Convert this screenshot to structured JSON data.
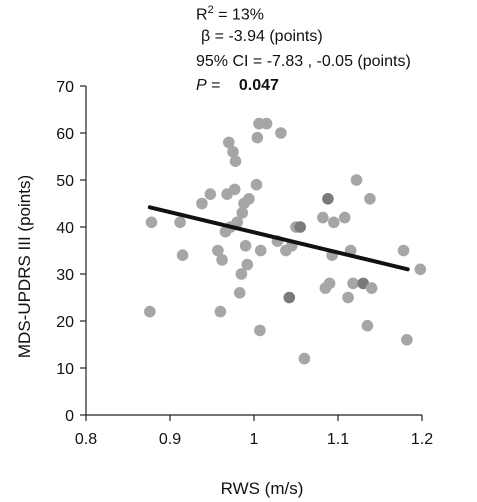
{
  "stats": {
    "r2_prefix": "R",
    "r2_sup": "2",
    "r2_suffix": " = 13%",
    "beta": "β = -3.94 (points)",
    "ci": "95% CI = -7.83 , -0.05 (points)",
    "p_label": "P",
    "p_eq": " = ",
    "p_value": "0.047"
  },
  "chart_data": {
    "type": "scatter",
    "xlabel": "RWS (m/s)",
    "ylabel": "MDS-UPDRS III (points)",
    "xlim": [
      0.8,
      1.2
    ],
    "ylim": [
      0,
      70
    ],
    "x_ticks": [
      "0.8",
      "0.9",
      "1",
      "1.1",
      "1.2"
    ],
    "y_ticks": [
      "0",
      "10",
      "20",
      "30",
      "40",
      "50",
      "60",
      "70"
    ],
    "grid": false,
    "point_color": "#a6a6a6",
    "dark_point_color": "#7a7a7a",
    "line_color": "#111111",
    "regression_line": {
      "x": [
        0.876,
        1.183
      ],
      "y": [
        44.2,
        31.0
      ]
    },
    "points": [
      {
        "x": 0.876,
        "y": 22
      },
      {
        "x": 0.878,
        "y": 41
      },
      {
        "x": 0.912,
        "y": 41
      },
      {
        "x": 0.915,
        "y": 34
      },
      {
        "x": 0.938,
        "y": 45
      },
      {
        "x": 0.948,
        "y": 47
      },
      {
        "x": 0.957,
        "y": 35
      },
      {
        "x": 0.96,
        "y": 22
      },
      {
        "x": 0.962,
        "y": 33
      },
      {
        "x": 0.966,
        "y": 39
      },
      {
        "x": 0.968,
        "y": 47
      },
      {
        "x": 0.97,
        "y": 58
      },
      {
        "x": 0.972,
        "y": 40
      },
      {
        "x": 0.975,
        "y": 56
      },
      {
        "x": 0.977,
        "y": 48
      },
      {
        "x": 0.978,
        "y": 54
      },
      {
        "x": 0.98,
        "y": 41
      },
      {
        "x": 0.983,
        "y": 26
      },
      {
        "x": 0.985,
        "y": 30
      },
      {
        "x": 0.986,
        "y": 43
      },
      {
        "x": 0.988,
        "y": 45
      },
      {
        "x": 0.99,
        "y": 36
      },
      {
        "x": 0.992,
        "y": 32
      },
      {
        "x": 0.994,
        "y": 46
      },
      {
        "x": 1.003,
        "y": 49
      },
      {
        "x": 1.004,
        "y": 59
      },
      {
        "x": 1.006,
        "y": 62
      },
      {
        "x": 1.007,
        "y": 18
      },
      {
        "x": 1.008,
        "y": 35
      },
      {
        "x": 1.015,
        "y": 62
      },
      {
        "x": 1.028,
        "y": 37
      },
      {
        "x": 1.032,
        "y": 60
      },
      {
        "x": 1.038,
        "y": 35
      },
      {
        "x": 1.042,
        "y": 25,
        "dark": true
      },
      {
        "x": 1.045,
        "y": 36
      },
      {
        "x": 1.05,
        "y": 40
      },
      {
        "x": 1.055,
        "y": 40,
        "dark": true
      },
      {
        "x": 1.06,
        "y": 12
      },
      {
        "x": 1.082,
        "y": 42
      },
      {
        "x": 1.085,
        "y": 27
      },
      {
        "x": 1.088,
        "y": 46,
        "dark": true
      },
      {
        "x": 1.09,
        "y": 28
      },
      {
        "x": 1.093,
        "y": 34
      },
      {
        "x": 1.095,
        "y": 41
      },
      {
        "x": 1.108,
        "y": 42
      },
      {
        "x": 1.112,
        "y": 25
      },
      {
        "x": 1.115,
        "y": 35
      },
      {
        "x": 1.118,
        "y": 28
      },
      {
        "x": 1.122,
        "y": 50
      },
      {
        "x": 1.13,
        "y": 28,
        "dark": true
      },
      {
        "x": 1.135,
        "y": 19
      },
      {
        "x": 1.138,
        "y": 46
      },
      {
        "x": 1.14,
        "y": 27
      },
      {
        "x": 1.178,
        "y": 35
      },
      {
        "x": 1.182,
        "y": 16
      },
      {
        "x": 1.198,
        "y": 31
      }
    ]
  }
}
